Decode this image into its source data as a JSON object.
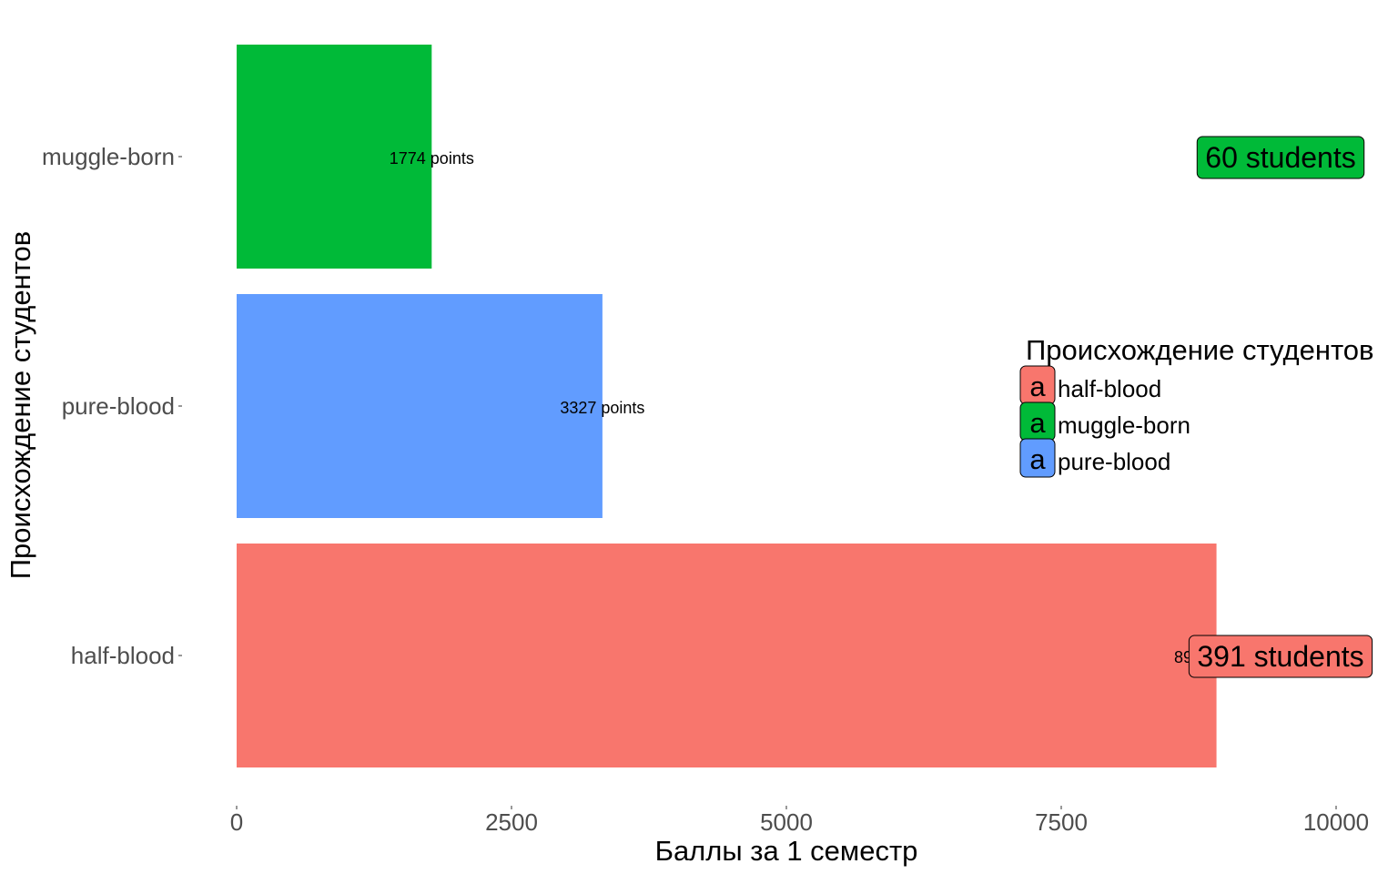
{
  "chart_data": {
    "type": "bar",
    "orientation": "horizontal",
    "categories": [
      "half-blood",
      "pure-blood",
      "muggle-born"
    ],
    "values": [
      8912,
      3327,
      1774
    ],
    "value_labels": [
      "8912 points",
      "3327 points",
      "1774 points"
    ],
    "count_labels": {
      "half-blood": "391 students",
      "muggle-born": "60 students"
    },
    "colors": {
      "half-blood": "#F8766D",
      "muggle-born": "#00BA38",
      "pure-blood": "#619CFF"
    },
    "xlabel": "Баллы за 1 семестр",
    "ylabel": "Происхождение студентов",
    "xlim": [
      0,
      10000
    ],
    "x_ticks": [
      0,
      2500,
      5000,
      7500,
      10000
    ],
    "grid": false,
    "legend": {
      "title": "Происхождение студентов",
      "placement": "right",
      "key_glyph": "a",
      "entries": [
        "half-blood",
        "muggle-born",
        "pure-blood"
      ]
    }
  }
}
